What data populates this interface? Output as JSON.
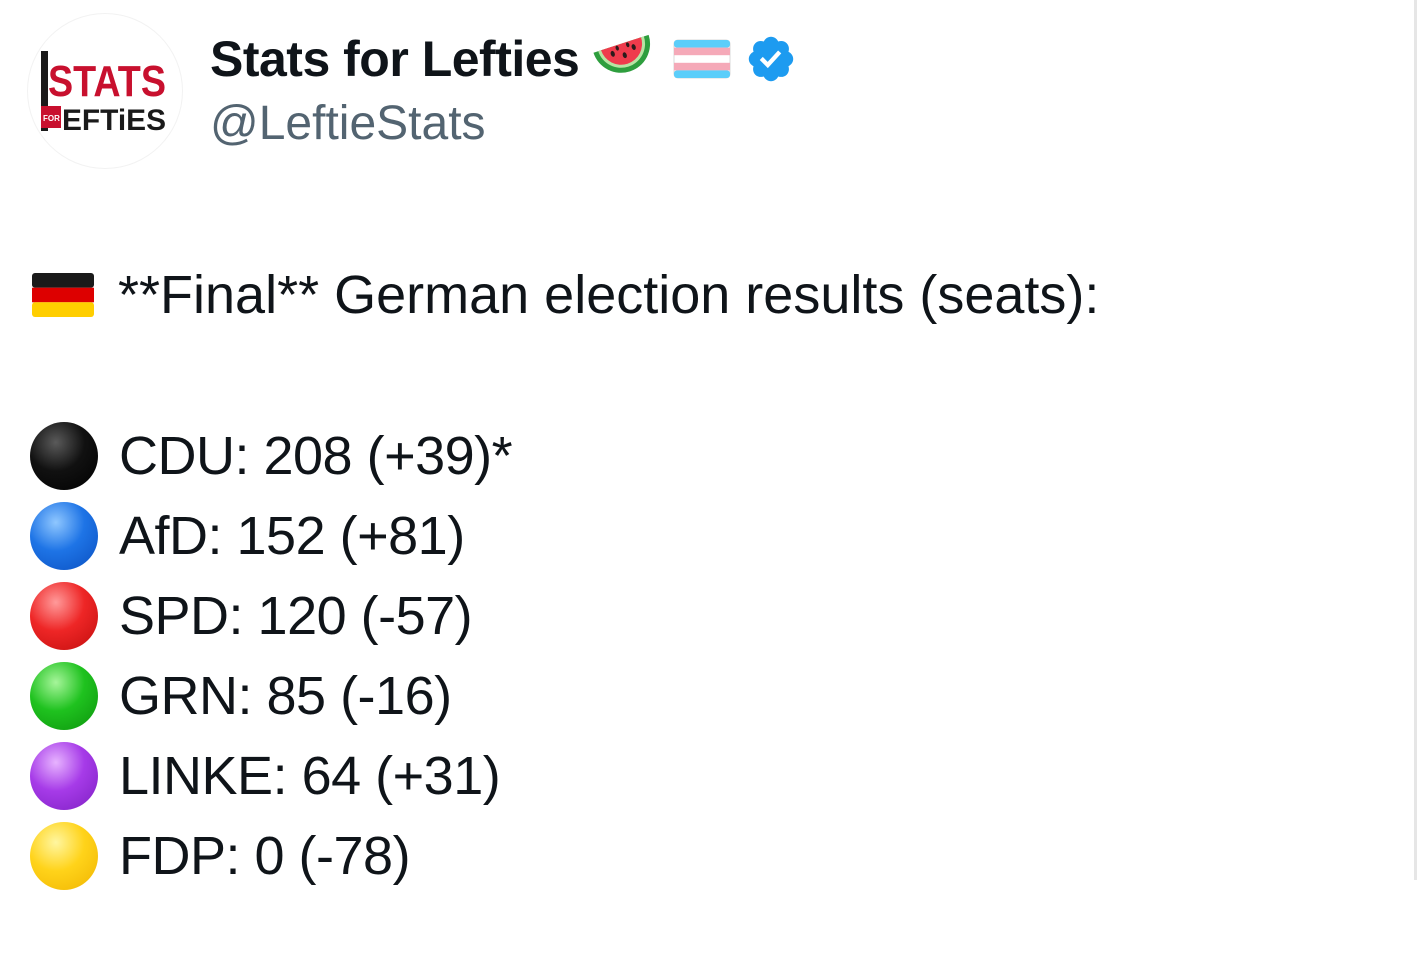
{
  "author": {
    "display_name": "Stats for Lefties",
    "handle": "@LeftieStats",
    "avatar_logo_top": "STATS",
    "avatar_logo_small": "FOR",
    "avatar_logo_bottom": "EFTiES",
    "name_emojis": [
      "watermelon-icon",
      "transgender-flag-icon",
      "verified-badge-icon"
    ],
    "verified_color": "#1d9bf0"
  },
  "post": {
    "headline_flag": "germany-flag-icon",
    "headline": "**Final** German election results (seats):",
    "results": [
      {
        "color_name": "black",
        "color": "#000000",
        "text": "CDU: 208 (+39)*"
      },
      {
        "color_name": "blue",
        "color": "#1e74e6",
        "text": "AfD: 152 (+81)"
      },
      {
        "color_name": "red",
        "color": "#ee2626",
        "text": "SPD: 120 (-57)"
      },
      {
        "color_name": "green",
        "color": "#1fc21f",
        "text": "GRN: 85 (-16)"
      },
      {
        "color_name": "purple",
        "color": "#a63be8",
        "text": "LINKE: 64 (+31)"
      },
      {
        "color_name": "yellow",
        "color": "#ffd31a",
        "text": "FDP: 0 (-78)"
      }
    ]
  }
}
